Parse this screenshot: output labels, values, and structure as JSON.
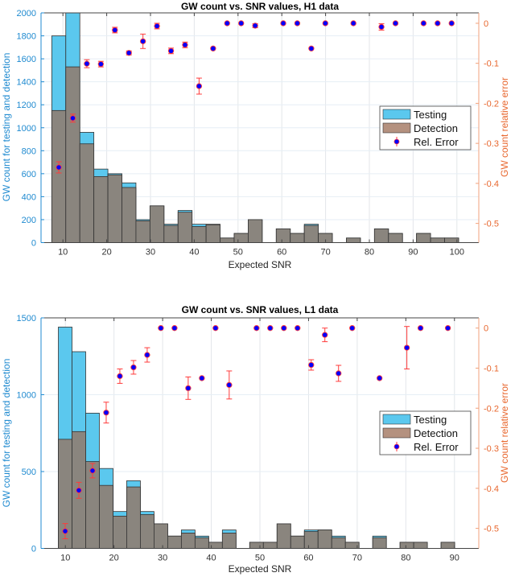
{
  "colors": {
    "testing": "#5BC8EE",
    "testing_edge": "#2a7fa8",
    "detection": "#8a857e",
    "detection_legend": "#b4917f",
    "left_axis": "#1f8ad0",
    "right_axis": "#e8672e",
    "error_bar": "#ff3b3b",
    "marker": "#0000ff"
  },
  "chart_data": [
    {
      "type": "bar",
      "title": "GW count vs. SNR values, H1 data",
      "xlabel": "Expected SNR",
      "ylabel": "GW count for testing and detection",
      "ylabel_right": "GW count relative error",
      "xlim": [
        5,
        105
      ],
      "ylim": [
        0,
        2000
      ],
      "ylim_right": [
        -0.548,
        0.026
      ],
      "xticks": [
        10,
        20,
        30,
        40,
        50,
        60,
        70,
        80,
        90,
        100
      ],
      "yticks": [
        0,
        200,
        400,
        600,
        800,
        1000,
        1200,
        1400,
        1600,
        1800,
        2000
      ],
      "yticks_right": [
        0,
        -0.1,
        -0.2,
        -0.3,
        -0.4,
        -0.5
      ],
      "yticklabels_right": [
        "0",
        "-0.1",
        "-0.2",
        "-0.3",
        "-0.4",
        "-0.5"
      ],
      "grid": true,
      "legend_placement": "right",
      "bin_start": 7.45,
      "bin_width": 3.205,
      "series": [
        {
          "name": "Testing",
          "values": [
            1800,
            2000,
            960,
            640,
            600,
            520,
            200,
            320,
            160,
            280,
            160,
            160,
            40,
            80,
            200,
            0,
            120,
            80,
            160,
            80,
            0,
            40,
            0,
            120,
            80,
            0,
            80,
            40,
            40
          ]
        },
        {
          "name": "Detection",
          "values": [
            1150,
            1530,
            860,
            575,
            590,
            480,
            190,
            320,
            150,
            265,
            140,
            155,
            40,
            80,
            200,
            0,
            120,
            80,
            150,
            80,
            0,
            40,
            0,
            120,
            80,
            0,
            80,
            40,
            40
          ]
        },
        {
          "name": "Rel. Error",
          "axis": "right",
          "values": [
            -0.36,
            -0.237,
            -0.101,
            -0.102,
            -0.017,
            -0.074,
            -0.045,
            -0.007,
            -0.069,
            -0.054,
            -0.157,
            -0.063,
            0,
            0,
            -0.006,
            null,
            0,
            0,
            -0.063,
            0,
            null,
            0,
            null,
            -0.009,
            0,
            null,
            0,
            0,
            0
          ],
          "errors": [
            0.014,
            0.01,
            0.01,
            0.007,
            0.007,
            0.005,
            0.018,
            0.007,
            0.007,
            0.007,
            0.02,
            0,
            0,
            0,
            0.005,
            null,
            0,
            0,
            0,
            0,
            null,
            0,
            null,
            0.008,
            0,
            null,
            0,
            0,
            0
          ]
        }
      ]
    },
    {
      "type": "bar",
      "title": "GW count vs. SNR values, L1 data",
      "xlabel": "Expected SNR",
      "ylabel": "GW count for testing and detection",
      "ylabel_right": "GW count relative error",
      "xlim": [
        5,
        95
      ],
      "ylim": [
        0,
        1500
      ],
      "ylim_right": [
        -0.55,
        0.0255
      ],
      "xticks": [
        10,
        20,
        30,
        40,
        50,
        60,
        70,
        80,
        90
      ],
      "yticks": [
        0,
        500,
        1000,
        1500
      ],
      "yticks_right": [
        0,
        -0.1,
        -0.2,
        -0.3,
        -0.4,
        -0.5
      ],
      "yticklabels_right": [
        "0",
        "-0.1",
        "-0.2",
        "-0.3",
        "-0.4",
        "-0.5"
      ],
      "grid": true,
      "legend_placement": "right",
      "bin_start": 8.56,
      "bin_width": 2.81,
      "series": [
        {
          "name": "Testing",
          "values": [
            1440,
            1280,
            880,
            520,
            240,
            440,
            240,
            160,
            80,
            120,
            80,
            40,
            120,
            0,
            40,
            40,
            160,
            80,
            120,
            120,
            80,
            40,
            0,
            80,
            0,
            40,
            40,
            0,
            40
          ]
        },
        {
          "name": "Detection",
          "values": [
            710,
            760,
            565,
            410,
            210,
            400,
            220,
            160,
            80,
            100,
            70,
            40,
            100,
            0,
            40,
            40,
            160,
            80,
            110,
            120,
            70,
            40,
            0,
            70,
            0,
            40,
            40,
            0,
            40
          ]
        },
        {
          "name": "Rel. Error",
          "axis": "right",
          "values": [
            -0.507,
            -0.405,
            -0.356,
            -0.211,
            -0.12,
            -0.098,
            -0.067,
            0,
            0,
            -0.15,
            -0.125,
            0,
            -0.142,
            null,
            0,
            0,
            0,
            0,
            -0.092,
            -0.017,
            -0.113,
            0,
            null,
            -0.125,
            null,
            -0.049,
            0,
            null,
            0
          ],
          "errors": [
            0.019,
            0.02,
            0.018,
            0.026,
            0.018,
            0.017,
            0.018,
            0,
            0,
            0.028,
            0,
            0,
            0.035,
            null,
            0,
            0,
            0,
            0,
            0.013,
            0.017,
            0.02,
            0,
            null,
            0,
            null,
            0.053,
            0,
            null,
            0
          ]
        }
      ]
    }
  ]
}
